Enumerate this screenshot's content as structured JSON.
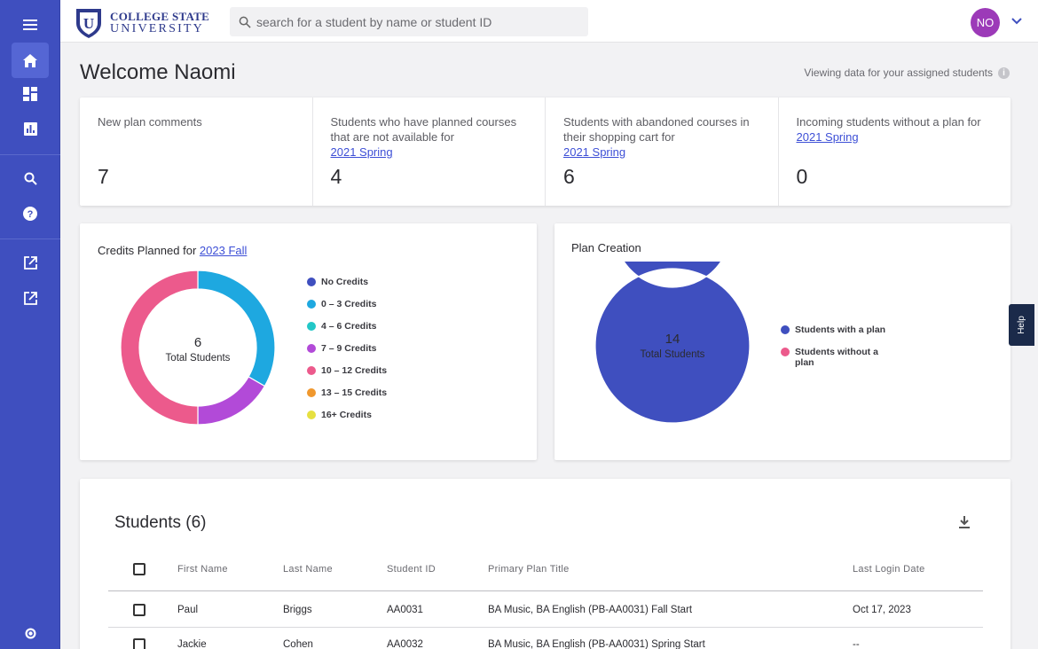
{
  "header": {
    "logo_line1": "COLLEGE STATE",
    "logo_line2": "UNIVERSITY",
    "logo_letter": "U",
    "search_placeholder": "search for a student by name or student ID",
    "avatar_initials": "NO"
  },
  "sidebar": {
    "items": [
      {
        "icon": "menu-icon"
      },
      {
        "icon": "home-icon",
        "active": true
      },
      {
        "icon": "dashboard-icon"
      },
      {
        "icon": "bar-chart-icon"
      },
      {
        "icon": "search-icon"
      },
      {
        "icon": "help-circle-icon"
      },
      {
        "icon": "external-link-icon"
      },
      {
        "icon": "external-link-icon"
      },
      {
        "icon": "brand-icon"
      }
    ]
  },
  "welcome": "Welcome Naomi",
  "viewing_note": "Viewing data for your assigned students",
  "stats": [
    {
      "label": "New plan comments",
      "link": "",
      "value": "7"
    },
    {
      "label": "Students who have planned courses that are not available for",
      "link": "2021 Spring",
      "value": "4"
    },
    {
      "label": "Students with abandoned courses in their shopping cart for",
      "link": "2021 Spring",
      "value": "6"
    },
    {
      "label": "Incoming students without a plan for",
      "link": "2021 Spring",
      "value": "0"
    }
  ],
  "chart_data": [
    {
      "type": "pie",
      "title": "Credits Planned for",
      "title_link": "2023 Fall",
      "center_value": "6",
      "center_label": "Total Students",
      "categories": [
        "No Credits",
        "0 – 3 Credits",
        "4 – 6 Credits",
        "7 – 9 Credits",
        "10 – 12 Credits",
        "13 – 15 Credits",
        "16+ Credits"
      ],
      "values": [
        0,
        2,
        0,
        1,
        3,
        0,
        0
      ],
      "colors": [
        "#3f4fbf",
        "#1ea8e0",
        "#22c7c7",
        "#b24ad8",
        "#ec5a8c",
        "#f0982e",
        "#e6e040"
      ]
    },
    {
      "type": "pie",
      "title": "Plan Creation",
      "center_value": "14",
      "center_label": "Total Students",
      "categories": [
        "Students with a plan",
        "Students without a plan"
      ],
      "values": [
        14,
        0
      ],
      "colors": [
        "#3f4fbf",
        "#ec5a8c"
      ]
    }
  ],
  "students": {
    "title": "Students (6)",
    "columns": [
      "First Name",
      "Last Name",
      "Student ID",
      "Primary Plan Title",
      "Last Login Date"
    ],
    "rows": [
      [
        "Paul",
        "Briggs",
        "AA0031",
        "BA Music, BA English (PB-AA0031) Fall Start",
        "Oct 17, 2023"
      ],
      [
        "Jackie",
        "Cohen",
        "AA0032",
        "BA Music, BA English (PB-AA0031) Spring Start",
        "--"
      ]
    ]
  },
  "help_tab": "Help"
}
